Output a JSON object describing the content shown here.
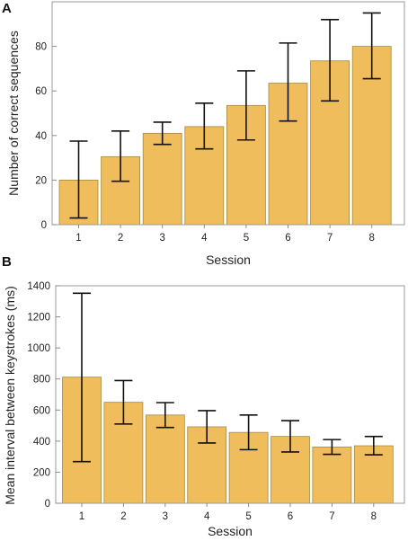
{
  "chart_data": [
    {
      "type": "bar",
      "panel_label": "A",
      "categories": [
        "1",
        "2",
        "3",
        "4",
        "5",
        "6",
        "7",
        "8"
      ],
      "values": [
        20,
        30.5,
        41,
        44,
        53.5,
        63.5,
        73.5,
        80
      ],
      "errors": [
        {
          "low": 3,
          "high": 37.5
        },
        {
          "low": 19.5,
          "high": 42
        },
        {
          "low": 36,
          "high": 46
        },
        {
          "low": 34,
          "high": 54.5
        },
        {
          "low": 38,
          "high": 69
        },
        {
          "low": 46.5,
          "high": 81.5
        },
        {
          "low": 55.5,
          "high": 92
        },
        {
          "low": 65.5,
          "high": 95
        }
      ],
      "xlabel": "Session",
      "ylabel": "Number of correct sequences",
      "ylim": [
        0,
        100
      ],
      "yticks": [
        0,
        20,
        40,
        60,
        80
      ],
      "grid": false,
      "bar_color": "#efbd5c"
    },
    {
      "type": "bar",
      "panel_label": "B",
      "categories": [
        "1",
        "2",
        "3",
        "4",
        "5",
        "6",
        "7",
        "8"
      ],
      "values": [
        812,
        650,
        568,
        492,
        456,
        430,
        362,
        370
      ],
      "errors": [
        {
          "low": 268,
          "high": 1352
        },
        {
          "low": 510,
          "high": 790
        },
        {
          "low": 488,
          "high": 648
        },
        {
          "low": 388,
          "high": 596
        },
        {
          "low": 345,
          "high": 568
        },
        {
          "low": 330,
          "high": 532
        },
        {
          "low": 315,
          "high": 410
        },
        {
          "low": 312,
          "high": 430
        }
      ],
      "xlabel": "Session",
      "ylabel": "Mean interval between keystrokes (ms)",
      "ylim": [
        0,
        1400
      ],
      "yticks": [
        0,
        200,
        400,
        600,
        800,
        1000,
        1200,
        1400
      ],
      "grid": false,
      "bar_color": "#efbd5c"
    }
  ]
}
